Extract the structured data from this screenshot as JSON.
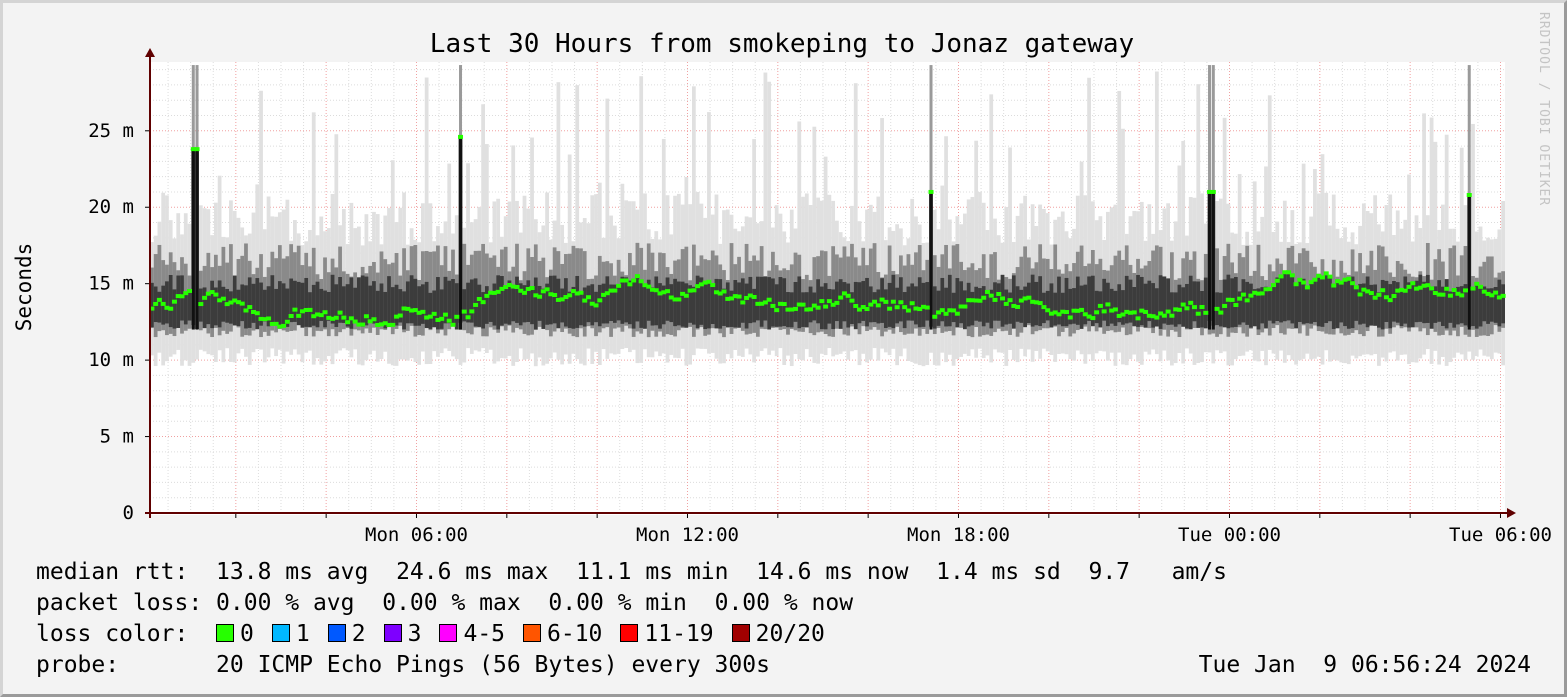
{
  "chart_data": {
    "type": "line",
    "title": "Last 30 Hours from smokeping to Jonaz gateway",
    "ylabel": "Seconds",
    "watermark": "RRDTOOL / TOBI OETIKER",
    "y_ticks": [
      {
        "value": 0,
        "label": "0"
      },
      {
        "value": 5,
        "label": "5 m"
      },
      {
        "value": 10,
        "label": "10 m"
      },
      {
        "value": 15,
        "label": "15 m"
      },
      {
        "value": 20,
        "label": "20 m"
      },
      {
        "value": 25,
        "label": "25 m"
      }
    ],
    "x_ticks": [
      {
        "hour": 6,
        "label": "Mon 06:00"
      },
      {
        "hour": 12,
        "label": "Mon 12:00"
      },
      {
        "hour": 18,
        "label": "Mon 18:00"
      },
      {
        "hour": 24,
        "label": "Tue 00:00"
      },
      {
        "hour": 30,
        "label": "Tue 06:00"
      }
    ],
    "x_range_hours": [
      0.1,
      30.1
    ],
    "ylim": [
      0,
      29.5
    ],
    "grid": true,
    "series": [
      {
        "name": "median rtt",
        "y_unit": "ms",
        "spikes": [
          {
            "t": 1.1,
            "v": 23.8
          },
          {
            "t": 7.0,
            "v": 24.6
          },
          {
            "t": 17.4,
            "v": 21.0
          },
          {
            "t": 23.6,
            "v": 21.0
          },
          {
            "t": 29.3,
            "v": 20.8
          }
        ]
      }
    ]
  },
  "legend": {
    "median_rtt": {
      "label": "median rtt:",
      "avg": "13.8 ms avg",
      "max": "24.6 ms max",
      "min": "11.1 ms min",
      "now": "14.6 ms now",
      "sd": "1.4 ms sd",
      "ams": "9.7   am/s"
    },
    "packet_loss": {
      "label": "packet loss:",
      "avg": "0.00 % avg",
      "max": "0.00 % max",
      "min": "0.00 % min",
      "now": "0.00 % now"
    },
    "loss_color": {
      "label": "loss color:",
      "items": [
        {
          "label": "0",
          "color": "#26ff00"
        },
        {
          "label": "1",
          "color": "#00b8ff"
        },
        {
          "label": "2",
          "color": "#0059ff"
        },
        {
          "label": "3",
          "color": "#7e00ff"
        },
        {
          "label": "4-5",
          "color": "#ff00ff"
        },
        {
          "label": "6-10",
          "color": "#ff5500"
        },
        {
          "label": "11-19",
          "color": "#ff0000"
        },
        {
          "label": "20/20",
          "color": "#a10000"
        }
      ]
    },
    "probe": {
      "label": "probe:",
      "text": "20 ICMP Echo Pings (56 Bytes) every 300s",
      "timestamp": "Tue Jan  9 06:56:24 2024"
    }
  },
  "colors": {
    "median": "#26ff00",
    "grid_major": "#f0a0a0",
    "grid_minor": "#dcdcdc",
    "axis": "#600000"
  }
}
